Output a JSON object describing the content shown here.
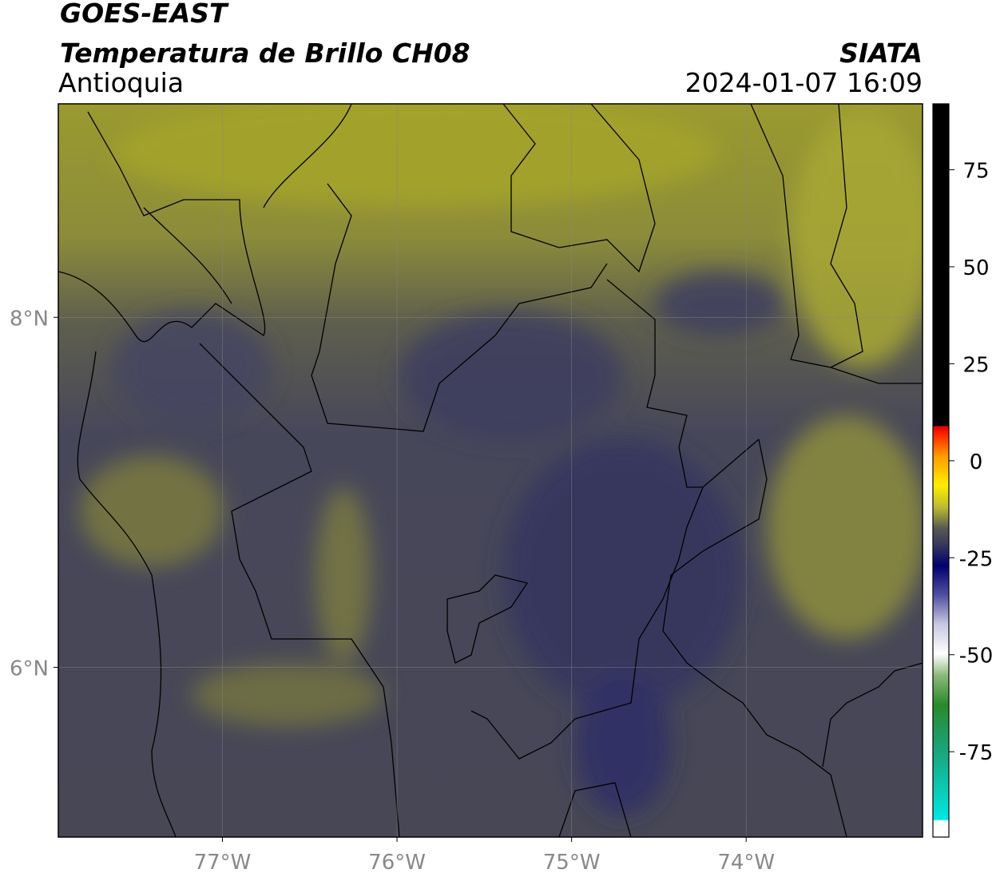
{
  "header": {
    "title": "GOES-EAST",
    "subtitle": "Temperatura de Brillo CH08",
    "region": "Antioquia",
    "source": "SIATA",
    "datetime": "2024-01-07 16:09"
  },
  "map": {
    "xlim": [
      -77.94,
      -72.99
    ],
    "ylim": [
      5.03,
      9.22
    ],
    "xticks": [
      {
        "value": -77,
        "label": "77°W"
      },
      {
        "value": -76,
        "label": "76°W"
      },
      {
        "value": -75,
        "label": "75°W"
      },
      {
        "value": -74,
        "label": "74°W"
      }
    ],
    "yticks": [
      {
        "value": 8,
        "label": "8°N"
      },
      {
        "value": 6,
        "label": "6°N"
      }
    ],
    "grid": true
  },
  "colorbar": {
    "lim": [
      -97,
      92
    ],
    "ticks": [
      75,
      50,
      25,
      0,
      -25,
      -50,
      -75
    ]
  }
}
